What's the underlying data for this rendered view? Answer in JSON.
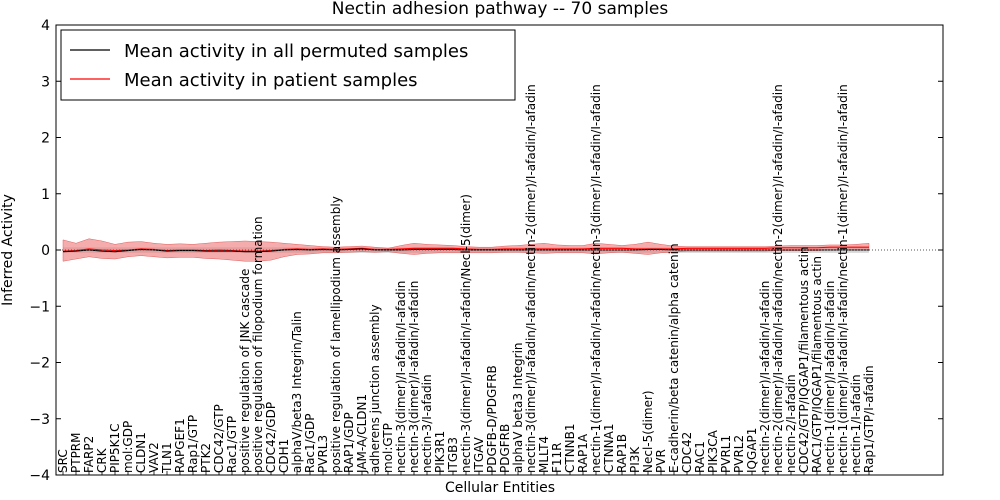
{
  "chart_data": {
    "type": "line",
    "title": "Nectin adhesion pathway -- 70 samples",
    "xlabel": "Cellular Entities",
    "ylabel": "Inferred Activity",
    "ylim": [
      -4,
      4
    ],
    "yticks": [
      "−4",
      "−3",
      "−2",
      "−1",
      "0",
      "1",
      "2",
      "3",
      "4"
    ],
    "legend": {
      "placement": "top-left"
    },
    "categories": [
      "SRC",
      "PTPRM",
      "FARP2",
      "CRK",
      "PIP5K1C",
      "mol:GDP",
      "CLDN1",
      "VAV2",
      "TLN1",
      "RAPGEF1",
      "Rap1/GTP",
      "PTK2",
      "CDC42/GTP",
      "Rac1/GTP",
      "positive regulation of JNK cascade",
      "positive regulation of filopodium formation",
      "CDC42/GDP",
      "CDH1",
      "alphaV/beta3 Integrin/Talin",
      "Rac1/GDP",
      "PVRL3",
      "positive regulation of lamellipodium assembly",
      "RAP1/GDP",
      "JAM-A/CLDN1",
      "adherens junction assembly",
      "mol:GTP",
      "nectin-3(dimer)/I-afadin/I-afadin",
      "nectin-3(dimer)/I-afadin/I-afadin",
      "nectin-3/I-afadin",
      "PIK3R1",
      "ITGB3",
      "nectin-3(dimer)/I-afadin/I-afadin/Necl-5(dimer)",
      "ITGAV",
      "PDGFB-D/PDGFRB",
      "PDGFRB",
      "alphaV beta3 Integrin",
      "nectin-3(dimer)/I-afadin/I-afadin/nectin-2(dimer)/I-afadin/I-afadin",
      "MLLT4",
      "F11R",
      "CTNNB1",
      "RAP1A",
      "nectin-1(dimer)/I-afadin/I-afadin/nectin-3(dimer)/I-afadin/I-afadin",
      "CTNNA1",
      "RAP1B",
      "PI3K",
      "Necl-5(dimer)",
      "PVR",
      "E-cadherin/beta catenin/alpha catenin",
      "CDC42",
      "RAC1",
      "PIK3CA",
      "PVRL1",
      "PVRL2",
      "IQGAP1",
      "nectin-2(dimer)/I-afadin/I-afadin",
      "nectin-2(dimer)/I-afadin/I-afadin/nectin-2(dimer)/I-afadin/I-afadin",
      "nectin-2/I-afadin",
      "CDC42/GTP/IQGAP1/filamentous actin",
      "RAC1/GTP/IQGAP1/filamentous actin",
      "nectin-1(dimer)/I-afadin/I-afadin",
      "nectin-1(dimer)/I-afadin/I-afadin/nectin-1(dimer)/I-afadin/I-afadin",
      "nectin-1/I-afadin",
      "Rap1/GTP/I-afadin"
    ],
    "series": [
      {
        "name": "Mean activity in all permuted samples",
        "color": "#000000",
        "values": [
          -0.03,
          -0.02,
          0.0,
          -0.02,
          -0.03,
          -0.01,
          0.01,
          0.0,
          -0.02,
          -0.01,
          -0.01,
          -0.02,
          -0.02,
          -0.02,
          -0.03,
          -0.03,
          -0.02,
          0.0,
          0.01,
          0.0,
          0.01,
          0.0,
          0.01,
          0.02,
          0.0,
          0.0,
          0.0,
          0.01,
          0.01,
          0.01,
          0.01,
          0.0,
          0.0,
          0.0,
          0.0,
          0.0,
          0.0,
          0.0,
          0.0,
          0.0,
          0.0,
          0.0,
          0.0,
          0.0,
          0.0,
          0.01,
          0.01,
          0.0,
          0.0,
          0.0,
          0.0,
          0.0,
          0.0,
          0.0,
          0.0,
          0.0,
          0.0,
          0.0,
          0.0,
          0.0,
          0.0,
          0.0,
          0.0
        ]
      },
      {
        "name": "Mean activity in patient samples",
        "color": "#ff0000",
        "values": [
          -0.02,
          -0.01,
          0.02,
          0.0,
          -0.01,
          0.0,
          0.02,
          0.01,
          -0.01,
          0.0,
          0.0,
          -0.01,
          0.0,
          -0.01,
          -0.02,
          -0.02,
          -0.01,
          0.01,
          0.02,
          0.01,
          0.02,
          0.01,
          0.02,
          0.03,
          0.01,
          0.01,
          0.02,
          0.03,
          0.03,
          0.03,
          0.03,
          0.02,
          0.01,
          0.01,
          0.02,
          0.02,
          0.02,
          0.02,
          0.02,
          0.02,
          0.02,
          0.03,
          0.03,
          0.03,
          0.02,
          0.02,
          0.02,
          0.02,
          0.03,
          0.03,
          0.03,
          0.03,
          0.03,
          0.03,
          0.03,
          0.04,
          0.04,
          0.04,
          0.04,
          0.05,
          0.05,
          0.05,
          0.05
        ],
        "upper": [
          0.18,
          0.12,
          0.2,
          0.16,
          0.1,
          0.14,
          0.15,
          0.12,
          0.1,
          0.11,
          0.1,
          0.12,
          0.14,
          0.15,
          0.16,
          0.15,
          0.14,
          0.12,
          0.1,
          0.08,
          0.06,
          0.05,
          0.06,
          0.07,
          0.05,
          0.03,
          0.08,
          0.12,
          0.1,
          0.09,
          0.08,
          0.06,
          0.05,
          0.05,
          0.07,
          0.08,
          0.1,
          0.12,
          0.09,
          0.08,
          0.08,
          0.12,
          0.1,
          0.08,
          0.1,
          0.14,
          0.1,
          0.07,
          0.06,
          0.06,
          0.06,
          0.06,
          0.06,
          0.06,
          0.06,
          0.07,
          0.08,
          0.08,
          0.08,
          0.09,
          0.09,
          0.1,
          0.12
        ],
        "lower": [
          -0.2,
          -0.16,
          -0.12,
          -0.15,
          -0.16,
          -0.12,
          -0.1,
          -0.12,
          -0.14,
          -0.13,
          -0.13,
          -0.15,
          -0.16,
          -0.18,
          -0.2,
          -0.2,
          -0.18,
          -0.12,
          -0.08,
          -0.07,
          -0.05,
          -0.05,
          -0.04,
          -0.03,
          -0.04,
          -0.03,
          -0.06,
          -0.08,
          -0.06,
          -0.05,
          -0.05,
          -0.05,
          -0.05,
          -0.05,
          -0.04,
          -0.04,
          -0.05,
          -0.06,
          -0.05,
          -0.05,
          -0.05,
          -0.07,
          -0.05,
          -0.04,
          -0.06,
          -0.08,
          -0.05,
          -0.04,
          -0.02,
          -0.02,
          -0.02,
          -0.02,
          -0.02,
          -0.02,
          -0.02,
          -0.01,
          -0.01,
          -0.01,
          -0.01,
          0.0,
          0.0,
          0.0,
          0.0
        ]
      }
    ],
    "permuted_band": {
      "upper": [
        0.05,
        0.05,
        0.05,
        0.05,
        0.05,
        0.05,
        0.05,
        0.05,
        0.05,
        0.05,
        0.05,
        0.05,
        0.05,
        0.05,
        0.05,
        0.05,
        0.05,
        0.05,
        0.05,
        0.05,
        0.05,
        0.05,
        0.05,
        0.05,
        0.05,
        0.05,
        0.05,
        0.05,
        0.05,
        0.05,
        0.05,
        0.05,
        0.05,
        0.05,
        0.05,
        0.05,
        0.05,
        0.05,
        0.05,
        0.05,
        0.05,
        0.05,
        0.05,
        0.05,
        0.05,
        0.05,
        0.05,
        0.05,
        0.05,
        0.05,
        0.05,
        0.05,
        0.05,
        0.05,
        0.05,
        0.05,
        0.05,
        0.05,
        0.05,
        0.05,
        0.05,
        0.05,
        0.05
      ],
      "lower": [
        -0.05,
        -0.05,
        -0.05,
        -0.05,
        -0.05,
        -0.05,
        -0.05,
        -0.05,
        -0.05,
        -0.05,
        -0.05,
        -0.05,
        -0.05,
        -0.05,
        -0.05,
        -0.05,
        -0.05,
        -0.05,
        -0.05,
        -0.05,
        -0.05,
        -0.05,
        -0.05,
        -0.05,
        -0.05,
        -0.05,
        -0.05,
        -0.05,
        -0.05,
        -0.05,
        -0.05,
        -0.05,
        -0.05,
        -0.05,
        -0.05,
        -0.05,
        -0.05,
        -0.05,
        -0.05,
        -0.05,
        -0.05,
        -0.05,
        -0.05,
        -0.05,
        -0.05,
        -0.05,
        -0.05,
        -0.05,
        -0.05,
        -0.05,
        -0.05,
        -0.05,
        -0.05,
        -0.05,
        -0.05,
        -0.05,
        -0.05,
        -0.05,
        -0.05,
        -0.05,
        -0.05,
        -0.05,
        -0.05
      ]
    }
  }
}
